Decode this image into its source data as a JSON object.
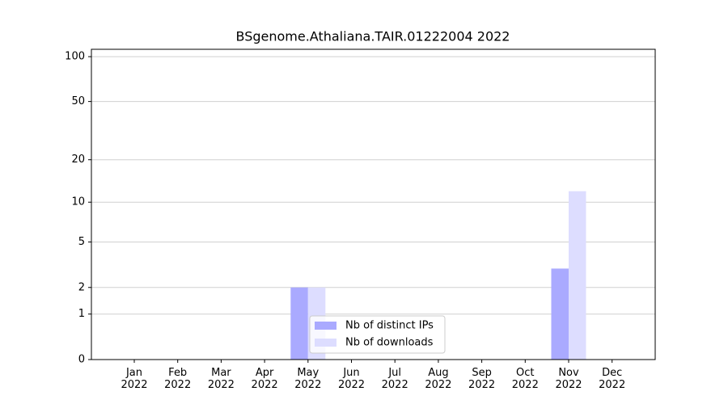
{
  "chart_data": {
    "type": "bar",
    "title": "BSgenome.Athaliana.TAIR.01222004 2022",
    "categories": [
      "Jan\n2022",
      "Feb\n2022",
      "Mar\n2022",
      "Apr\n2022",
      "May\n2022",
      "Jun\n2022",
      "Jul\n2022",
      "Aug\n2022",
      "Sep\n2022",
      "Oct\n2022",
      "Nov\n2022",
      "Dec\n2022"
    ],
    "series": [
      {
        "name": "Nb of distinct IPs",
        "color": "#aaaaff",
        "values": [
          0,
          0,
          0,
          0,
          2,
          0,
          0,
          0,
          0,
          0,
          3,
          0
        ]
      },
      {
        "name": "Nb of downloads",
        "color": "#ddddff",
        "values": [
          0,
          0,
          0,
          0,
          2,
          0,
          0,
          0,
          0,
          0,
          12,
          0
        ]
      }
    ],
    "yscale": "log1p",
    "ylim": [
      0,
      112
    ],
    "yticks": [
      0,
      1,
      2,
      5,
      10,
      20,
      50,
      100
    ],
    "grid": true,
    "legend": "lower center"
  }
}
